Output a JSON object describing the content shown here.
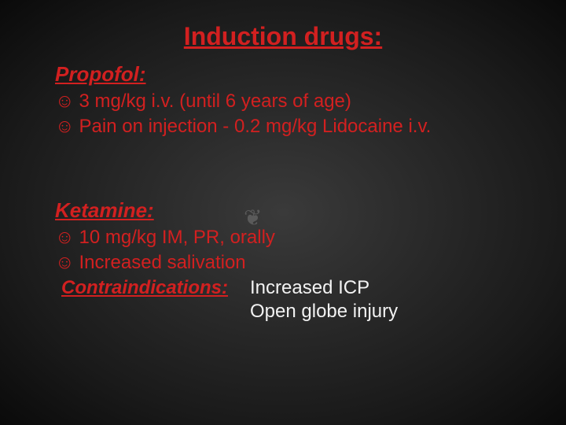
{
  "colors": {
    "red": "#d22020",
    "white": "#f2f2f2",
    "background_inner": "#3a3a3a",
    "background_outer": "#0a0a0a",
    "flourish": "#6a6a6a"
  },
  "typography": {
    "title_fontsize": 32,
    "subhead_fontsize": 26,
    "body_fontsize": 24,
    "font_family": "Arial"
  },
  "slide": {
    "title": "Induction drugs:",
    "propofol": {
      "heading": "Propofol:",
      "bullets": [
        "3 mg/kg i.v. (until 6 years of age)",
        "Pain on injection - 0.2 mg/kg Lidocaine i.v."
      ]
    },
    "ketamine": {
      "heading": "Ketamine:",
      "bullets": [
        "10 mg/kg IM, PR, orally",
        "Increased salivation"
      ],
      "contra_label": "Contraindications:",
      "contra_items": [
        "Increased ICP",
        "Open globe injury"
      ]
    },
    "bullet_glyph": "☺",
    "flourish_glyph": "❦"
  }
}
